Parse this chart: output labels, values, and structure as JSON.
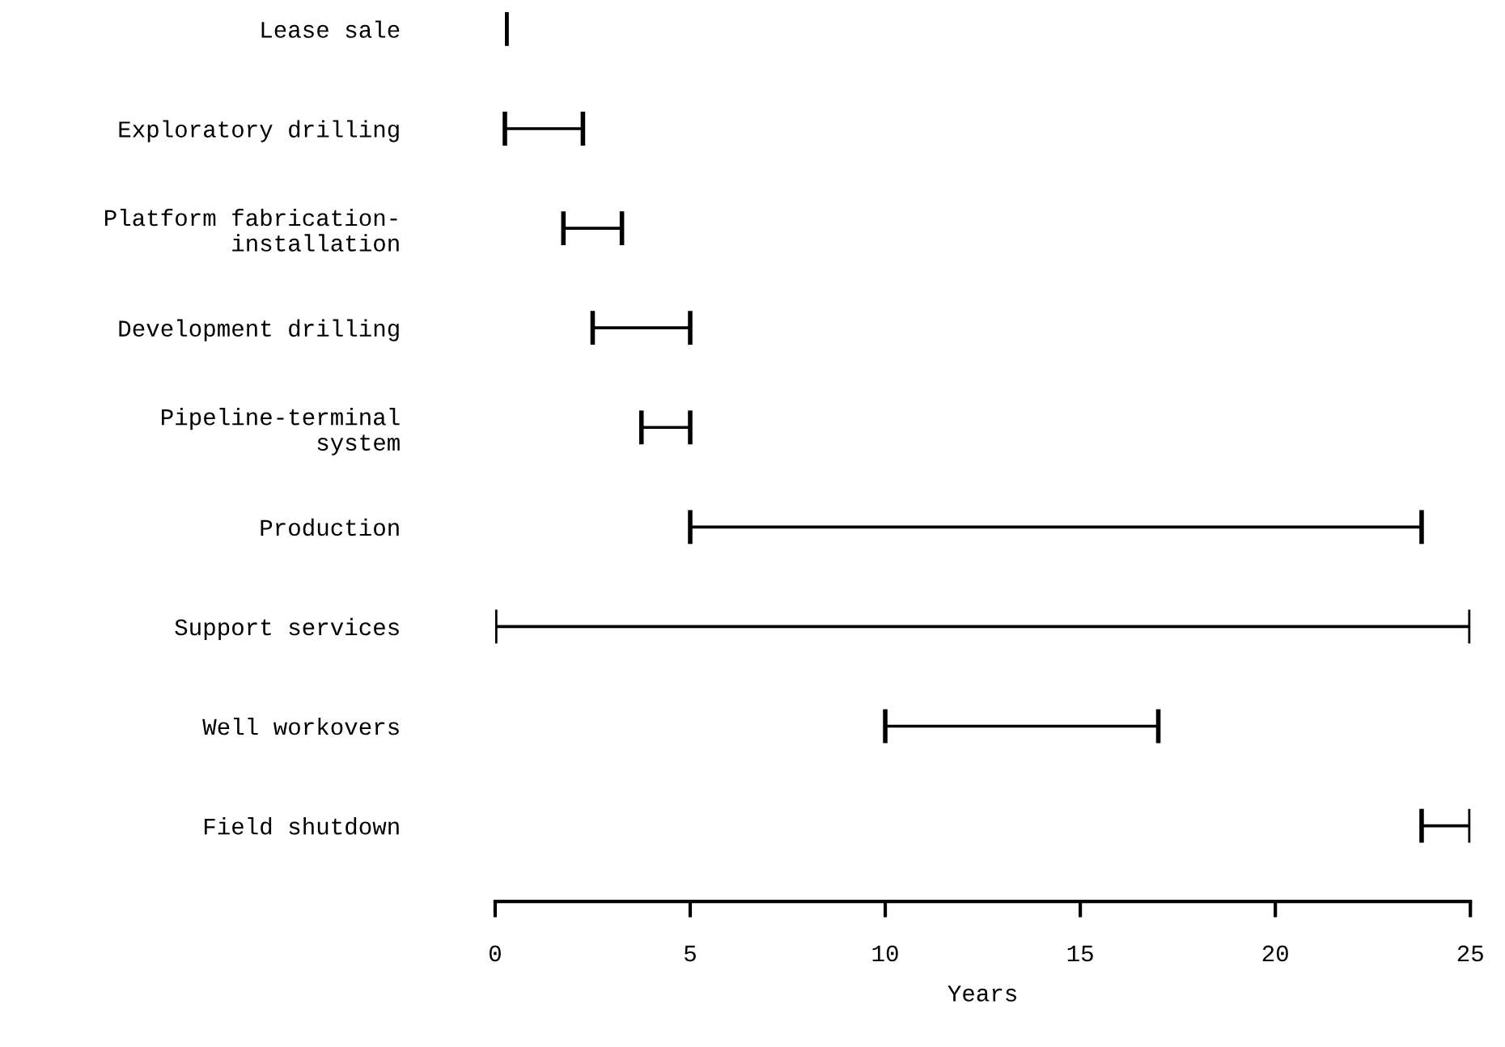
{
  "chart_data": {
    "type": "bar",
    "orientation": "horizontal",
    "xlabel": "Years",
    "categories": [
      "Lease sale",
      "Exploratory drilling",
      "Platform fabrication-\ninstallation",
      "Development drilling",
      "Pipeline-terminal\nsystem",
      "Production",
      "Support services",
      "Well workovers",
      "Field shutdown"
    ],
    "base": [
      0.25,
      0.25,
      1.75,
      2.5,
      3.75,
      5,
      0,
      10,
      23.75
    ],
    "values": [
      0.1,
      2,
      1.5,
      2.5,
      1.25,
      18.75,
      25,
      7,
      1.25
    ],
    "color": "#000000",
    "xlim": [
      0,
      25
    ],
    "xticks": [
      0,
      5,
      10,
      15,
      20,
      25
    ]
  }
}
